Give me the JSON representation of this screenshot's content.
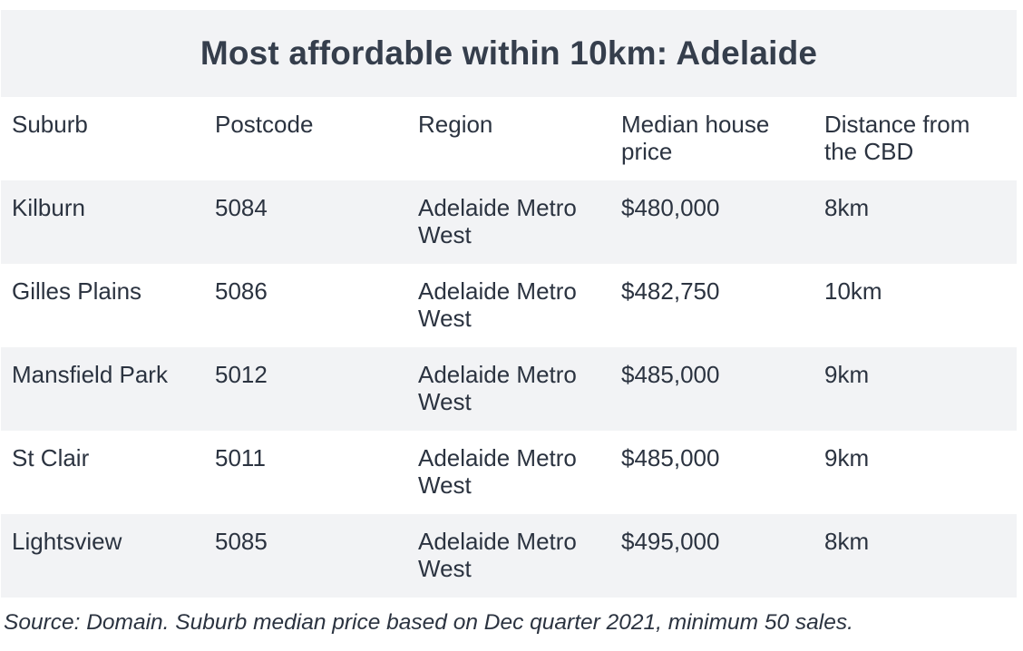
{
  "chart_data": {
    "type": "table",
    "title": "Most affordable within 10km: Adelaide",
    "columns": [
      "Suburb",
      "Postcode",
      "Region",
      "Median house price",
      "Distance from the CBD"
    ],
    "rows": [
      [
        "Kilburn",
        "5084",
        "Adelaide Metro West",
        "$480,000",
        "8km"
      ],
      [
        "Gilles Plains",
        "5086",
        "Adelaide Metro West",
        "$482,750",
        "10km"
      ],
      [
        "Mansfield Park",
        "5012",
        "Adelaide Metro West",
        "$485,000",
        "9km"
      ],
      [
        "St Clair",
        "5011",
        "Adelaide Metro West",
        "$485,000",
        "9km"
      ],
      [
        "Lightsview",
        "5085",
        "Adelaide Metro West",
        "$495,000",
        "8km"
      ]
    ],
    "source": "Source: Domain. Suburb median price based on Dec quarter 2021, minimum 50 sales."
  },
  "colors": {
    "stripe": "#f2f3f5",
    "text": "#2b3340",
    "title": "#353e4c"
  }
}
